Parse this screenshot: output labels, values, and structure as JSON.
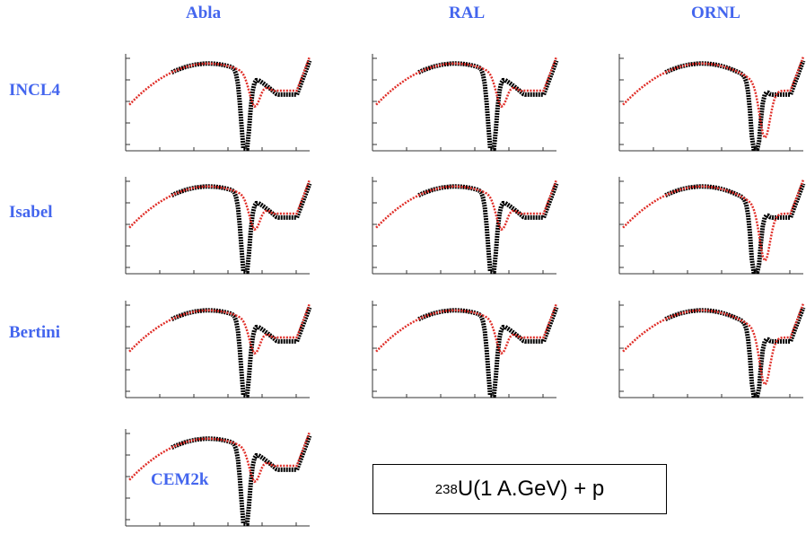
{
  "columns": [
    "Abla",
    "RAL",
    "ORNL"
  ],
  "rows": [
    "INCL4",
    "Isabel",
    "Bertini",
    "CEM2k"
  ],
  "reaction": {
    "mass_number": "238",
    "text": "U(1 A.GeV) + p"
  }
}
